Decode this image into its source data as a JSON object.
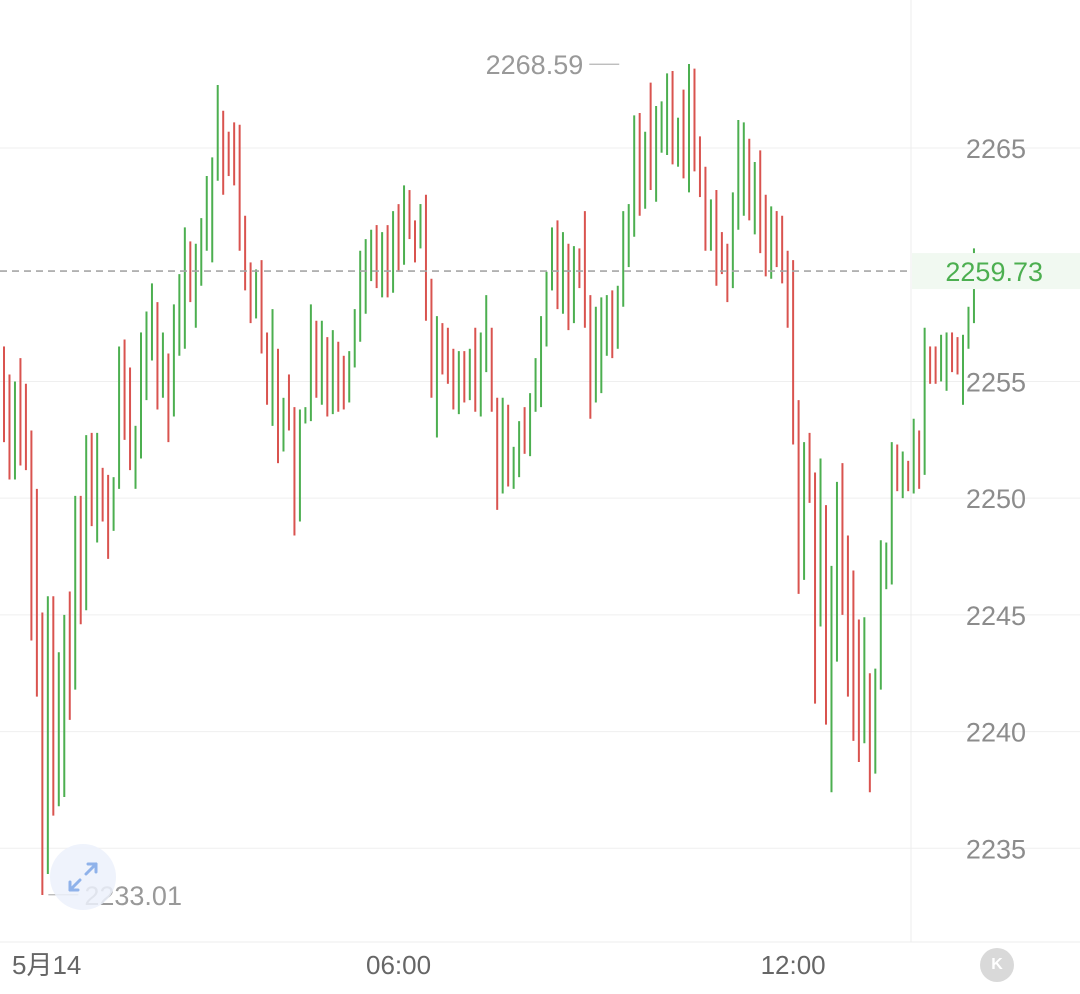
{
  "chart_data": {
    "type": "ohlc",
    "title": "",
    "xlabel": "",
    "ylabel": "",
    "ylim": [
      2232.1,
      2269.8
    ],
    "y_ticks": [
      2235,
      2240,
      2245,
      2250,
      2255,
      2265
    ],
    "x_ticks": [
      {
        "label": "5月14",
        "index": 0
      },
      {
        "label": "06:00",
        "index": 72
      },
      {
        "label": "12:00",
        "index": 144
      }
    ],
    "current_price": 2259.73,
    "current_price_label": "2259.73",
    "high_marker": {
      "label": "2268.59",
      "value": 2268.59,
      "index": 113
    },
    "low_marker": {
      "label": "2233.01",
      "value": 2233.01,
      "index": 7
    },
    "grid": true,
    "colors": {
      "up": "#4caf50",
      "down": "#d9534f",
      "current": "#4caf50",
      "grid": "#efefef",
      "text": "#999999"
    },
    "candles": [
      [
        2254.9,
        2256.5,
        2252.4,
        2254.3
      ],
      [
        2254.3,
        2255.3,
        2250.8,
        2251.0
      ],
      [
        2251.0,
        2255.0,
        2250.8,
        2254.6
      ],
      [
        2254.6,
        2256.0,
        2251.4,
        2252.0
      ],
      [
        2252.0,
        2254.9,
        2251.2,
        2251.6
      ],
      [
        2251.6,
        2252.9,
        2243.9,
        2244.2
      ],
      [
        2244.2,
        2250.4,
        2241.5,
        2242.8
      ],
      [
        2242.8,
        2245.1,
        2233.0,
        2234.1
      ],
      [
        2234.1,
        2245.8,
        2233.9,
        2245.2
      ],
      [
        2245.2,
        2245.8,
        2236.4,
        2237.3
      ],
      [
        2237.3,
        2243.4,
        2236.8,
        2241.9
      ],
      [
        2241.9,
        2245.0,
        2237.2,
        2244.3
      ],
      [
        2244.3,
        2246.0,
        2240.5,
        2242.1
      ],
      [
        2242.1,
        2250.1,
        2241.8,
        2249.6
      ],
      [
        2249.6,
        2250.1,
        2244.6,
        2245.6
      ],
      [
        2245.6,
        2252.7,
        2245.2,
        2252.2
      ],
      [
        2252.2,
        2252.8,
        2248.8,
        2249.6
      ],
      [
        2249.6,
        2252.8,
        2248.1,
        2250.7
      ],
      [
        2250.7,
        2251.3,
        2249.0,
        2250.1
      ],
      [
        2250.1,
        2251.0,
        2247.4,
        2248.8
      ],
      [
        2248.8,
        2250.9,
        2248.6,
        2250.5
      ],
      [
        2250.5,
        2256.5,
        2250.4,
        2256.0
      ],
      [
        2256.0,
        2256.8,
        2252.5,
        2254.2
      ],
      [
        2254.2,
        2255.6,
        2251.2,
        2251.8
      ],
      [
        2251.8,
        2253.1,
        2250.4,
        2252.3
      ],
      [
        2252.3,
        2257.1,
        2251.7,
        2256.4
      ],
      [
        2256.4,
        2258.0,
        2254.2,
        2256.6
      ],
      [
        2256.6,
        2259.2,
        2255.9,
        2258.2
      ],
      [
        2258.2,
        2258.4,
        2253.8,
        2254.8
      ],
      [
        2254.8,
        2257.1,
        2254.3,
        2255.7
      ],
      [
        2255.7,
        2256.2,
        2252.4,
        2253.7
      ],
      [
        2253.7,
        2258.3,
        2253.5,
        2257.3
      ],
      [
        2257.3,
        2259.6,
        2256.1,
        2259.2
      ],
      [
        2259.2,
        2261.6,
        2256.4,
        2260.7
      ],
      [
        2260.7,
        2261.0,
        2258.4,
        2258.9
      ],
      [
        2258.9,
        2260.9,
        2257.3,
        2260.5
      ],
      [
        2260.5,
        2262.0,
        2259.1,
        2261.3
      ],
      [
        2261.3,
        2263.8,
        2260.6,
        2262.3
      ],
      [
        2262.3,
        2264.6,
        2260.1,
        2263.9
      ],
      [
        2263.9,
        2267.7,
        2263.6,
        2266.3
      ],
      [
        2266.3,
        2266.6,
        2263.0,
        2264.4
      ],
      [
        2264.4,
        2265.7,
        2263.8,
        2264.2
      ],
      [
        2264.2,
        2266.1,
        2263.4,
        2264.0
      ],
      [
        2264.0,
        2266.0,
        2260.6,
        2261.3
      ],
      [
        2261.3,
        2262.1,
        2258.9,
        2259.7
      ],
      [
        2259.7,
        2260.1,
        2257.5,
        2258.2
      ],
      [
        2258.2,
        2259.8,
        2257.7,
        2259.3
      ],
      [
        2259.3,
        2260.2,
        2256.2,
        2256.6
      ],
      [
        2256.6,
        2257.1,
        2254.0,
        2254.6
      ],
      [
        2254.6,
        2258.1,
        2253.1,
        2256.0
      ],
      [
        2256.0,
        2256.4,
        2251.5,
        2252.1
      ],
      [
        2252.1,
        2254.3,
        2252.0,
        2253.9
      ],
      [
        2253.9,
        2255.3,
        2252.9,
        2253.4
      ],
      [
        2253.4,
        2253.9,
        2248.4,
        2249.3
      ],
      [
        2249.3,
        2253.8,
        2249.0,
        2253.3
      ],
      [
        2253.3,
        2253.9,
        2253.2,
        2253.5
      ],
      [
        2253.5,
        2258.3,
        2253.3,
        2257.1
      ],
      [
        2257.1,
        2257.6,
        2254.3,
        2254.6
      ],
      [
        2254.6,
        2257.6,
        2254.0,
        2256.4
      ],
      [
        2256.4,
        2256.9,
        2253.5,
        2254.5
      ],
      [
        2254.5,
        2257.2,
        2253.6,
        2255.8
      ],
      [
        2255.8,
        2256.7,
        2253.7,
        2255.6
      ],
      [
        2255.6,
        2256.1,
        2253.8,
        2254.3
      ],
      [
        2254.3,
        2256.3,
        2254.1,
        2255.8
      ],
      [
        2255.8,
        2258.1,
        2255.6,
        2257.5
      ],
      [
        2257.5,
        2260.6,
        2256.7,
        2260.0
      ],
      [
        2260.0,
        2261.1,
        2257.9,
        2260.2
      ],
      [
        2260.2,
        2261.5,
        2259.3,
        2261.1
      ],
      [
        2261.1,
        2261.7,
        2259.0,
        2259.2
      ],
      [
        2259.2,
        2261.4,
        2258.6,
        2260.5
      ],
      [
        2260.5,
        2261.7,
        2258.6,
        2259.0
      ],
      [
        2259.0,
        2262.3,
        2258.8,
        2261.7
      ],
      [
        2261.7,
        2262.6,
        2259.7,
        2260.4
      ],
      [
        2260.4,
        2263.4,
        2260.0,
        2262.8
      ],
      [
        2262.8,
        2263.2,
        2261.1,
        2261.8
      ],
      [
        2261.8,
        2261.9,
        2260.1,
        2261.0
      ],
      [
        2261.0,
        2262.6,
        2260.7,
        2262.1
      ],
      [
        2262.1,
        2263.0,
        2257.6,
        2258.0
      ],
      [
        2258.0,
        2259.4,
        2254.3,
        2255.0
      ],
      [
        2255.0,
        2257.8,
        2252.6,
        2257.1
      ],
      [
        2257.1,
        2257.5,
        2255.3,
        2256.3
      ],
      [
        2256.3,
        2257.3,
        2254.9,
        2255.2
      ],
      [
        2255.2,
        2256.4,
        2253.8,
        2254.6
      ],
      [
        2254.6,
        2256.3,
        2253.6,
        2255.7
      ],
      [
        2255.7,
        2256.3,
        2254.1,
        2255.1
      ],
      [
        2255.1,
        2256.4,
        2254.2,
        2256.0
      ],
      [
        2256.0,
        2257.3,
        2253.7,
        2253.9
      ],
      [
        2253.9,
        2257.1,
        2253.5,
        2256.1
      ],
      [
        2256.1,
        2258.7,
        2255.4,
        2257.0
      ],
      [
        2257.0,
        2257.3,
        2253.7,
        2254.1
      ],
      [
        2254.1,
        2254.3,
        2249.5,
        2250.3
      ],
      [
        2250.3,
        2254.3,
        2250.2,
        2253.9
      ],
      [
        2253.9,
        2254.0,
        2250.5,
        2251.2
      ],
      [
        2251.2,
        2252.2,
        2250.4,
        2251.6
      ],
      [
        2251.6,
        2253.3,
        2250.9,
        2252.6
      ],
      [
        2252.6,
        2253.9,
        2251.9,
        2252.2
      ],
      [
        2252.2,
        2254.5,
        2251.8,
        2253.9
      ],
      [
        2253.9,
        2256.0,
        2253.7,
        2254.4
      ],
      [
        2254.4,
        2257.8,
        2253.9,
        2256.7
      ],
      [
        2256.7,
        2259.7,
        2256.5,
        2259.1
      ],
      [
        2259.1,
        2261.6,
        2258.9,
        2261.5
      ],
      [
        2261.5,
        2261.9,
        2258.1,
        2258.9
      ],
      [
        2258.9,
        2261.4,
        2257.9,
        2260.6
      ],
      [
        2260.6,
        2260.9,
        2257.2,
        2257.9
      ],
      [
        2257.9,
        2260.8,
        2257.5,
        2259.8
      ],
      [
        2259.8,
        2260.7,
        2259.0,
        2259.5
      ],
      [
        2259.5,
        2262.3,
        2257.3,
        2258.3
      ],
      [
        2258.3,
        2258.7,
        2253.4,
        2254.4
      ],
      [
        2254.4,
        2258.2,
        2254.1,
        2256.0
      ],
      [
        2256.0,
        2258.6,
        2254.5,
        2257.0
      ],
      [
        2257.0,
        2258.7,
        2256.1,
        2258.4
      ],
      [
        2258.4,
        2258.9,
        2256.0,
        2256.9
      ],
      [
        2256.9,
        2259.1,
        2256.4,
        2258.9
      ],
      [
        2258.9,
        2262.3,
        2258.2,
        2260.5
      ],
      [
        2260.5,
        2262.6,
        2259.9,
        2262.4
      ],
      [
        2262.4,
        2266.4,
        2261.2,
        2265.3
      ],
      [
        2265.3,
        2266.5,
        2262.1,
        2262.8
      ],
      [
        2262.8,
        2265.7,
        2262.4,
        2264.9
      ],
      [
        2264.9,
        2267.8,
        2263.2,
        2264.3
      ],
      [
        2264.3,
        2266.8,
        2262.7,
        2265.9
      ],
      [
        2265.9,
        2267.0,
        2264.8,
        2266.2
      ],
      [
        2266.2,
        2268.2,
        2264.7,
        2267.6
      ],
      [
        2267.6,
        2268.3,
        2264.3,
        2265.2
      ],
      [
        2265.2,
        2266.3,
        2264.2,
        2265.5
      ],
      [
        2265.5,
        2267.5,
        2263.7,
        2264.4
      ],
      [
        2264.4,
        2268.6,
        2263.1,
        2267.7
      ],
      [
        2267.7,
        2268.4,
        2264.0,
        2265.2
      ],
      [
        2265.2,
        2265.5,
        2262.9,
        2264.0
      ],
      [
        2264.0,
        2264.2,
        2260.6,
        2261.5
      ],
      [
        2261.5,
        2262.8,
        2260.6,
        2262.6
      ],
      [
        2262.6,
        2263.2,
        2259.1,
        2261.0
      ],
      [
        2261.0,
        2261.4,
        2259.6,
        2260.7
      ],
      [
        2260.7,
        2260.9,
        2258.4,
        2259.6
      ],
      [
        2259.6,
        2263.1,
        2259.0,
        2262.3
      ],
      [
        2262.3,
        2266.2,
        2261.5,
        2264.6
      ],
      [
        2264.6,
        2266.1,
        2262.1,
        2264.7
      ],
      [
        2264.7,
        2265.4,
        2261.9,
        2263.1
      ],
      [
        2263.1,
        2264.4,
        2261.3,
        2263.2
      ],
      [
        2263.2,
        2264.9,
        2260.5,
        2262.6
      ],
      [
        2262.6,
        2263.0,
        2259.5,
        2260.6
      ],
      [
        2260.6,
        2262.5,
        2259.4,
        2262.1
      ],
      [
        2262.1,
        2262.3,
        2259.9,
        2261.2
      ],
      [
        2261.2,
        2262.1,
        2259.2,
        2260.5
      ],
      [
        2260.5,
        2260.6,
        2257.3,
        2259.7
      ],
      [
        2259.7,
        2260.2,
        2252.3,
        2252.9
      ],
      [
        2252.9,
        2254.2,
        2245.9,
        2247.2
      ],
      [
        2247.2,
        2252.4,
        2246.5,
        2252.0
      ],
      [
        2252.0,
        2252.8,
        2249.8,
        2250.7
      ],
      [
        2250.7,
        2251.1,
        2241.2,
        2245.9
      ],
      [
        2245.9,
        2251.7,
        2244.5,
        2249.7
      ],
      [
        2249.7,
        2249.7,
        2240.3,
        2241.8
      ],
      [
        2241.8,
        2247.1,
        2237.4,
        2245.3
      ],
      [
        2245.3,
        2250.7,
        2243.0,
        2249.0
      ],
      [
        2249.0,
        2251.5,
        2245.0,
        2247.8
      ],
      [
        2247.8,
        2248.4,
        2241.5,
        2245.5
      ],
      [
        2245.5,
        2246.9,
        2239.6,
        2242.1
      ],
      [
        2242.1,
        2244.8,
        2238.7,
        2239.6
      ],
      [
        2239.6,
        2244.9,
        2239.5,
        2241.5
      ],
      [
        2241.5,
        2242.5,
        2237.4,
        2238.6
      ],
      [
        2238.6,
        2242.7,
        2238.2,
        2242.1
      ],
      [
        2242.1,
        2248.2,
        2241.8,
        2247.5
      ],
      [
        2247.5,
        2248.1,
        2246.1,
        2247.8
      ],
      [
        2247.8,
        2252.4,
        2246.3,
        2252.1
      ],
      [
        2252.1,
        2252.3,
        2250.3,
        2250.6
      ],
      [
        2250.6,
        2252.0,
        2250.0,
        2251.1
      ],
      [
        2251.1,
        2251.6,
        2250.3,
        2250.6
      ],
      [
        2250.6,
        2253.4,
        2250.2,
        2252.5
      ],
      [
        2252.5,
        2252.9,
        2250.4,
        2252.2
      ],
      [
        2252.2,
        2257.3,
        2251.0,
        2256.4
      ],
      [
        2256.4,
        2256.5,
        2254.9,
        2255.9
      ],
      [
        2255.9,
        2256.5,
        2254.9,
        2255.2
      ],
      [
        2255.2,
        2257.0,
        2255.0,
        2256.2
      ],
      [
        2256.2,
        2257.1,
        2254.6,
        2256.8
      ],
      [
        2256.8,
        2257.1,
        2255.4,
        2256.4
      ],
      [
        2256.4,
        2256.9,
        2255.3,
        2256.1
      ],
      [
        2256.1,
        2257.0,
        2254.0,
        2256.7
      ],
      [
        2256.7,
        2258.2,
        2256.4,
        2257.7
      ],
      [
        2257.7,
        2260.7,
        2257.5,
        2259.73
      ]
    ]
  }
}
